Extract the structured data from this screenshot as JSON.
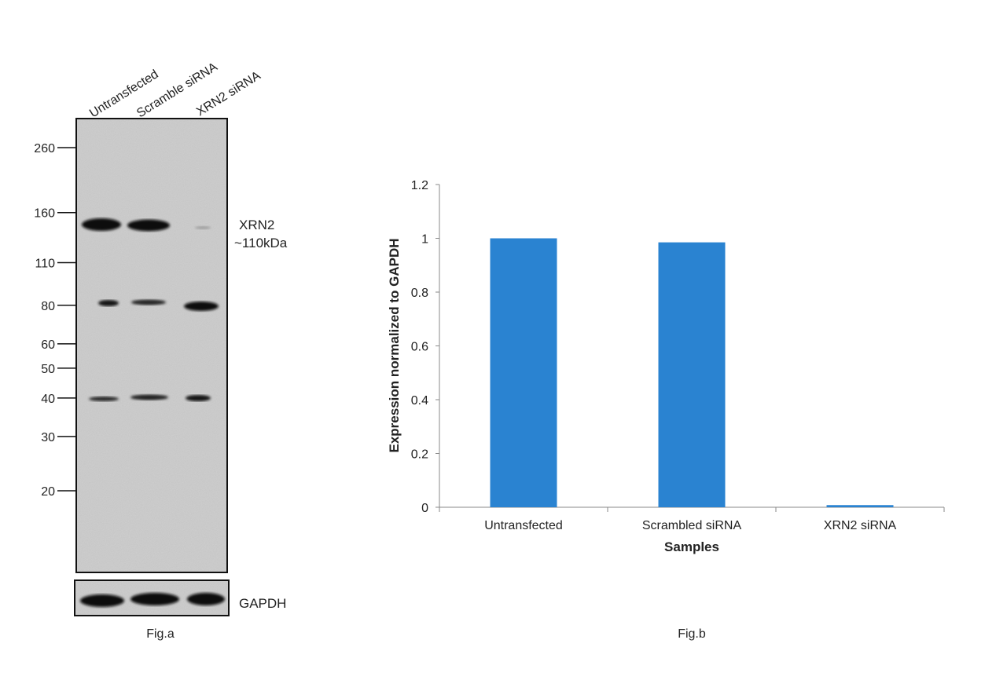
{
  "figure_a": {
    "lane_labels": [
      "Untransfected",
      "Scramble siRNA",
      "XRN2 siRNA"
    ],
    "markers": [
      "260",
      "160",
      "110",
      "80",
      "60",
      "50",
      "40",
      "30",
      "20"
    ],
    "marker_kda": [
      260,
      160,
      110,
      80,
      60,
      50,
      40,
      30,
      20
    ],
    "target_label_line1": "XRN2",
    "target_label_line2": "~110kDa",
    "loading_control_label": "GAPDH",
    "caption": "Fig.a"
  },
  "chart_data": {
    "type": "bar",
    "categories": [
      "Untransfected",
      "Scrambled siRNA",
      "XRN2 siRNA"
    ],
    "values": [
      1.0,
      0.985,
      0.008
    ],
    "xlabel": "Samples",
    "ylabel": "Expression normalized to GAPDH",
    "ylim": [
      0,
      1.2
    ],
    "yticks": [
      "0",
      "0.2",
      "0.4",
      "0.6",
      "0.8",
      "1",
      "1.2"
    ],
    "grid": false,
    "legend": "none",
    "bar_color": "#2a83d1",
    "caption": "Fig.b"
  }
}
